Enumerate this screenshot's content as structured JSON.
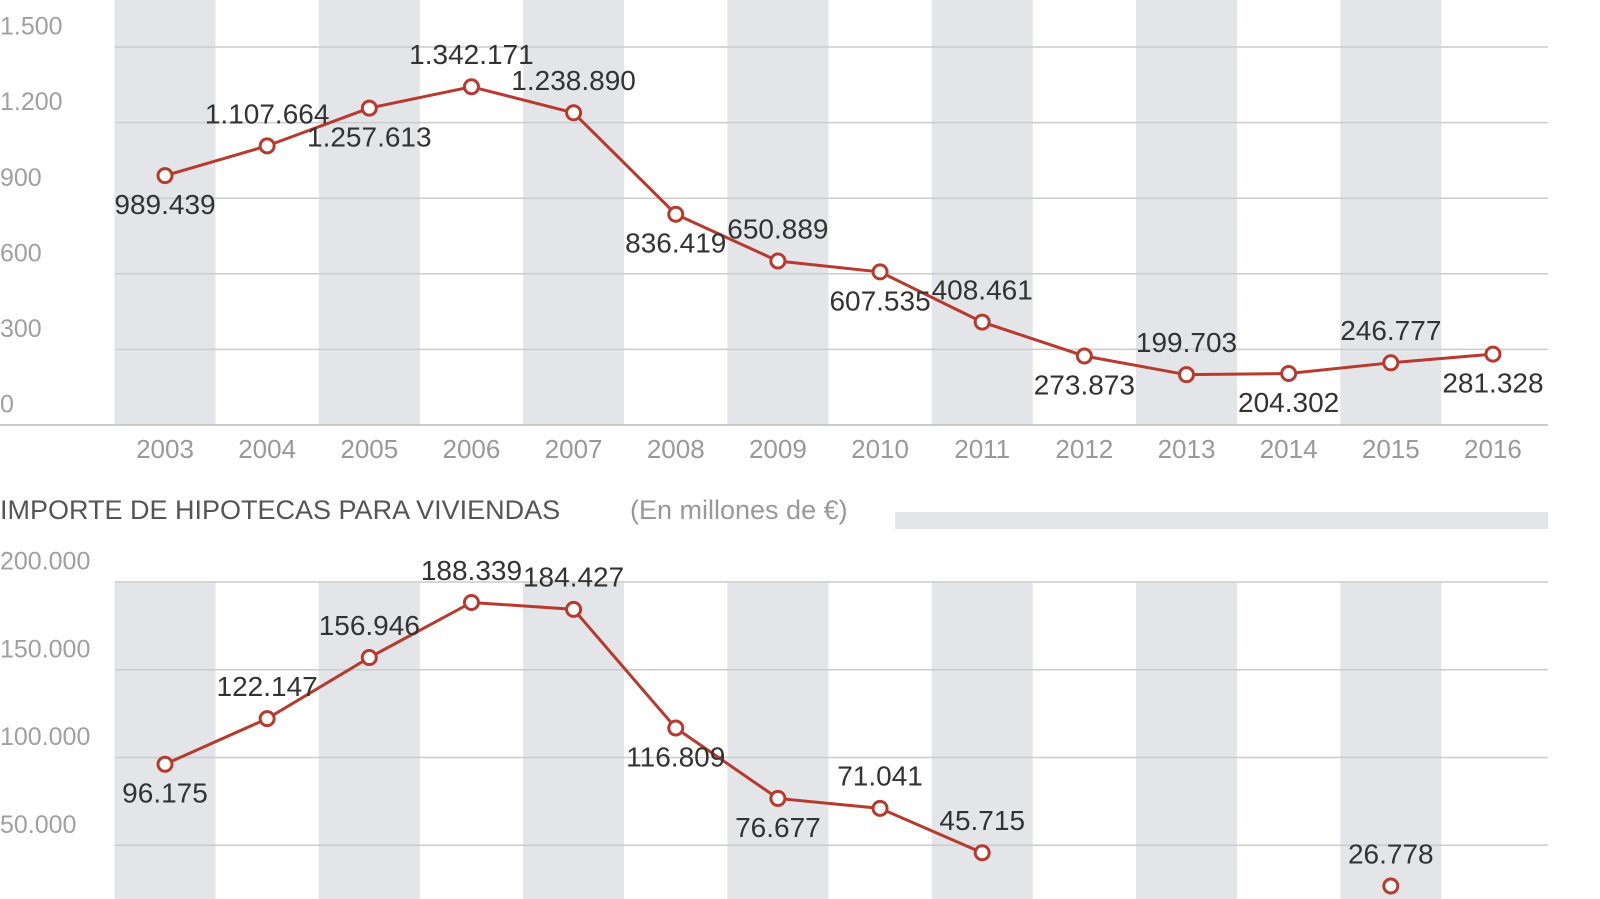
{
  "chart_data": [
    {
      "type": "line",
      "categories": [
        "2003",
        "2004",
        "2005",
        "2006",
        "2007",
        "2008",
        "2009",
        "2010",
        "2011",
        "2012",
        "2013",
        "2014",
        "2015",
        "2016"
      ],
      "values": [
        989.439,
        1107.664,
        1257.613,
        1342.171,
        1238.89,
        836.419,
        650.889,
        607.535,
        408.461,
        273.873,
        199.703,
        204.302,
        246.777,
        281.328
      ],
      "value_labels": [
        "989.439",
        "1.107.664",
        "1.257.613",
        "1.342.171",
        "1.238.890",
        "836.419",
        "650.889",
        "607.535",
        "408.461",
        "273.873",
        "199.703",
        "204.302",
        "246.777",
        "281.328"
      ],
      "color": "#b83a2e",
      "ylim": [
        0,
        1500
      ],
      "yticks": [
        0,
        300,
        600,
        900,
        {
          "value": 1200,
          "label": "1.200"
        },
        {
          "value": 1500,
          "label": "1.500"
        }
      ],
      "grid": true
    },
    {
      "type": "line",
      "title": "IMPORTE DE HIPOTECAS PARA VIVIENDAS",
      "subtitle": "(En millones de €)",
      "values": [
        96175,
        122147,
        156946,
        188339,
        184427,
        116809,
        76677,
        71041,
        45715,
        null,
        null,
        null,
        26778,
        null
      ],
      "value_labels": [
        "96.175",
        "122.147",
        "156.946",
        "188.339",
        "184.427",
        "116.809",
        "76.677",
        "71.041",
        "45.715",
        null,
        null,
        null,
        "26.778",
        null
      ],
      "color": "#b83a2e",
      "ylim": [
        0,
        200000
      ],
      "yticks": [
        {
          "value": 50000,
          "label": "50.000"
        },
        {
          "value": 100000,
          "label": "100.000"
        },
        {
          "value": 150000,
          "label": "150.000"
        },
        {
          "value": 200000,
          "label": "200.000"
        }
      ],
      "grid": true
    }
  ]
}
